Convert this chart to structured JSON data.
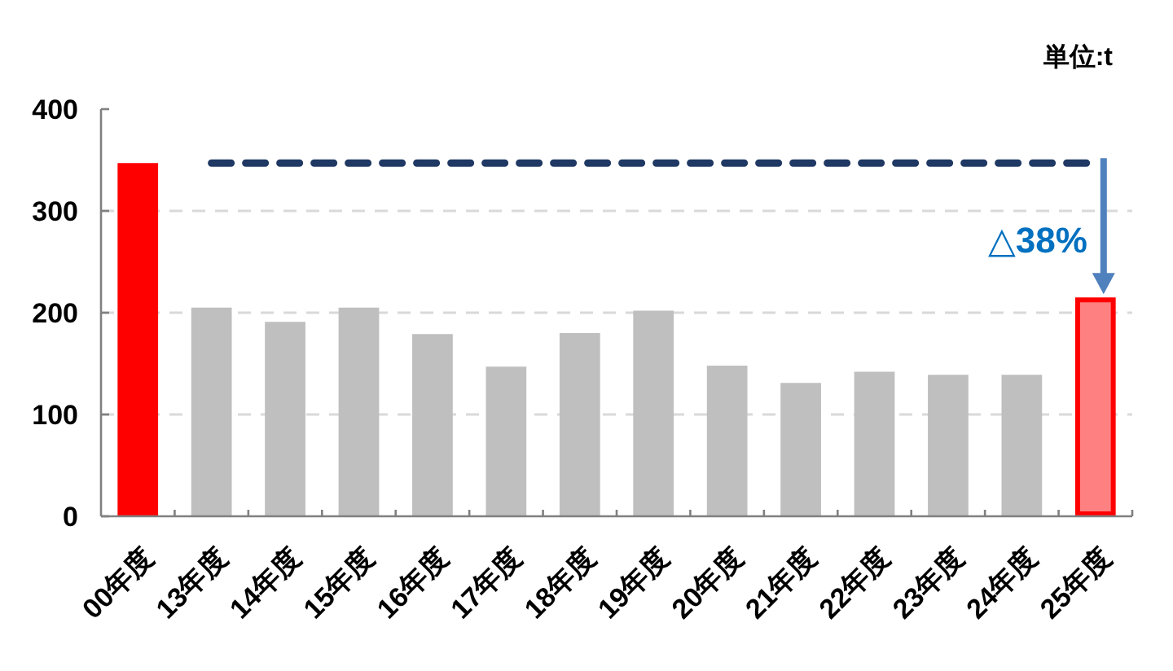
{
  "chart_data": {
    "type": "bar",
    "categories": [
      "00年度",
      "13年度",
      "14年度",
      "15年度",
      "16年度",
      "17年度",
      "18年度",
      "19年度",
      "20年度",
      "21年度",
      "22年度",
      "23年度",
      "24年度",
      "25年度"
    ],
    "values": [
      347,
      205,
      191,
      205,
      179,
      147,
      180,
      202,
      148,
      131,
      142,
      139,
      139,
      215
    ],
    "colors": [
      "#ff0000",
      "#bfbfbf",
      "#bfbfbf",
      "#bfbfbf",
      "#bfbfbf",
      "#bfbfbf",
      "#bfbfbf",
      "#bfbfbf",
      "#bfbfbf",
      "#bfbfbf",
      "#bfbfbf",
      "#bfbfbf",
      "#bfbfbf",
      "#ff8080"
    ],
    "ylim": [
      0,
      400
    ],
    "yticks": [
      0,
      100,
      200,
      300,
      400
    ],
    "grid": "y",
    "ref_lines": [
      {
        "axis": "y",
        "value": 347,
        "color": "#1f3864",
        "line_style": "dashed"
      }
    ],
    "annotations": [
      "単位:t",
      "△38%"
    ]
  }
}
